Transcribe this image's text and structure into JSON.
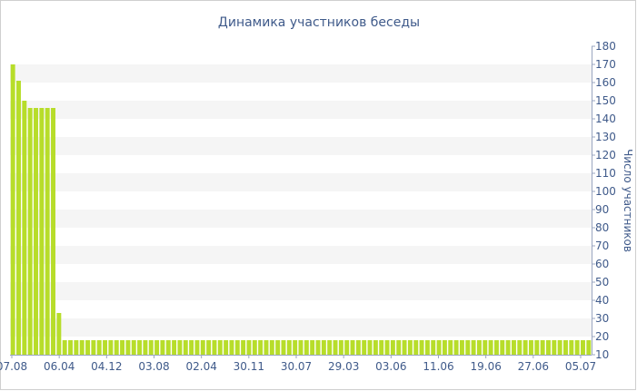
{
  "chart_data": {
    "type": "bar",
    "title": "Динамика участников беседы",
    "ylabel": "Число участников",
    "ylim": [
      10,
      180
    ],
    "yticks": [
      10,
      20,
      30,
      40,
      50,
      60,
      70,
      80,
      90,
      100,
      110,
      120,
      130,
      140,
      150,
      160,
      170,
      180
    ],
    "xticks": [
      "07.08",
      "06.04",
      "04.12",
      "03.08",
      "02.04",
      "30.11",
      "30.07",
      "29.03",
      "03.06",
      "11.06",
      "19.06",
      "27.06",
      "05.07"
    ],
    "values": [
      170,
      161,
      150,
      146,
      146,
      146,
      146,
      146,
      33,
      18,
      18,
      18,
      18,
      18,
      18,
      18,
      18,
      18,
      18,
      18,
      18,
      18,
      18,
      18,
      18,
      18,
      18,
      18,
      18,
      18,
      18,
      18,
      18,
      18,
      18,
      18,
      18,
      18,
      18,
      18,
      18,
      18,
      18,
      18,
      18,
      18,
      18,
      18,
      18,
      18,
      18,
      18,
      18,
      18,
      18,
      18,
      18,
      18,
      18,
      18,
      18,
      18,
      18,
      18,
      18,
      18,
      18,
      18,
      18,
      18,
      18,
      18,
      18,
      18,
      18,
      18,
      18,
      18,
      18,
      18,
      18,
      18,
      18,
      18,
      18,
      18,
      18,
      18,
      18,
      18,
      18,
      18,
      18,
      18,
      18,
      18,
      18,
      18,
      18,
      18,
      18
    ],
    "colors": {
      "bar": "#b7dd2a",
      "band": "#f5f5f5",
      "text": "#3f5a8a",
      "axis": "#9aa6c0"
    },
    "grid": true
  }
}
